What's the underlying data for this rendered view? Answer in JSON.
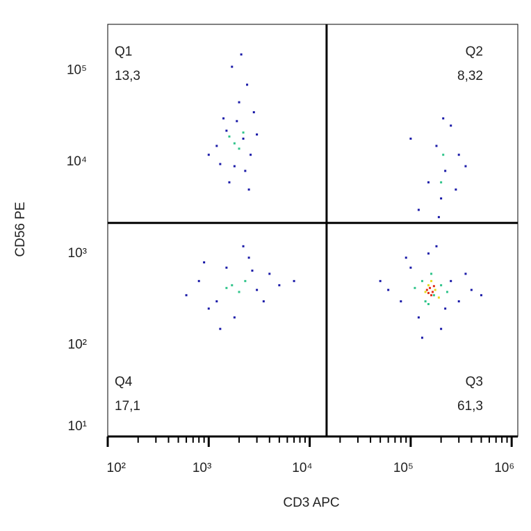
{
  "chart_data": {
    "type": "scatter",
    "x_label": "CD3 APC",
    "y_label": "CD56 PE",
    "log_x": true,
    "log_y": true,
    "xlim": [
      100,
      1150000
    ],
    "ylim": [
      10,
      320000
    ],
    "xticks": [
      {
        "value": 100,
        "label": "10²"
      },
      {
        "value": 1000,
        "label": "10³"
      },
      {
        "value": 10000,
        "label": "10⁴"
      },
      {
        "value": 100000,
        "label": "10⁵"
      },
      {
        "value": 1000000,
        "label": "10⁶"
      }
    ],
    "xminorticks": [
      200,
      300,
      400,
      500,
      600,
      700,
      800,
      900,
      2000,
      3000,
      4000,
      5000,
      6000,
      7000,
      8000,
      9000,
      20000,
      30000,
      40000,
      50000,
      60000,
      70000,
      80000,
      90000,
      200000,
      300000,
      400000,
      500000,
      600000,
      700000,
      800000,
      900000
    ],
    "yticks": [
      {
        "value": 10,
        "label": "10¹"
      },
      {
        "value": 100,
        "label": "10²"
      },
      {
        "value": 1000,
        "label": "10³"
      },
      {
        "value": 10000,
        "label": "10⁴"
      },
      {
        "value": 100000,
        "label": "10⁵"
      }
    ],
    "gate": {
      "x": 14700,
      "y": 2160
    },
    "quadrants": {
      "names": [
        "Q1",
        "Q2",
        "Q3",
        "Q4"
      ],
      "values": [
        13.3,
        8.32,
        61.3,
        17.1
      ],
      "value_labels": [
        "13,3",
        "8,32",
        "61,3",
        "17,1"
      ]
    },
    "series": [
      {
        "color": "#1a1aa8",
        "x": [
          1200,
          1500,
          1800,
          2200,
          2600,
          1400,
          2000,
          2400,
          1700,
          2100,
          1000,
          3000,
          1600,
          2300,
          1900,
          2800,
          1300,
          2500,
          800,
          1200,
          1500,
          2500,
          3000,
          4000,
          1000,
          1800,
          600,
          2200,
          5000,
          3500,
          1300,
          7000,
          2700,
          900,
          60000,
          80000,
          100000,
          250000,
          300000,
          120000,
          200000,
          350000,
          50000,
          150000,
          400000,
          180000,
          90000,
          220000,
          500000,
          130000,
          200000,
          220000,
          180000,
          250000,
          150000,
          300000,
          120000,
          280000,
          210000,
          350000,
          100000,
          190000
        ],
        "y": [
          15000,
          22000,
          9000,
          18000,
          12000,
          30000,
          45000,
          70000,
          110000,
          150000,
          12000,
          20000,
          6000,
          8000,
          28000,
          35000,
          9500,
          5000,
          500,
          300,
          700,
          900,
          400,
          600,
          250,
          200,
          350,
          1200,
          450,
          300,
          150,
          500,
          650,
          800,
          400,
          300,
          700,
          500,
          300,
          200,
          150,
          600,
          500,
          1000,
          400,
          1200,
          900,
          250,
          350,
          120,
          4000,
          8000,
          15000,
          25000,
          6000,
          12000,
          3000,
          5000,
          30000,
          9000,
          18000,
          2500
        ]
      },
      {
        "color": "#2fc48a",
        "x": [
          1800,
          2000,
          1600,
          2200,
          1700,
          2000,
          1500,
          2300,
          130000,
          170000,
          200000,
          150000,
          110000,
          230000,
          160000,
          140000,
          210000,
          200000
        ],
        "y": [
          16000,
          14000,
          19000,
          21000,
          450,
          380,
          420,
          500,
          500,
          350,
          450,
          280,
          420,
          380,
          600,
          300,
          12000,
          6000
        ]
      },
      {
        "color": "#e8d81e",
        "x": [
          150000,
          175000,
          140000,
          190000,
          160000
        ],
        "y": [
          450,
          400,
          380,
          330,
          500
        ]
      },
      {
        "color": "#e0301a",
        "x": [
          155000,
          165000,
          145000,
          170000,
          160000,
          150000
        ],
        "y": [
          420,
          380,
          400,
          440,
          350,
          370
        ]
      }
    ]
  }
}
